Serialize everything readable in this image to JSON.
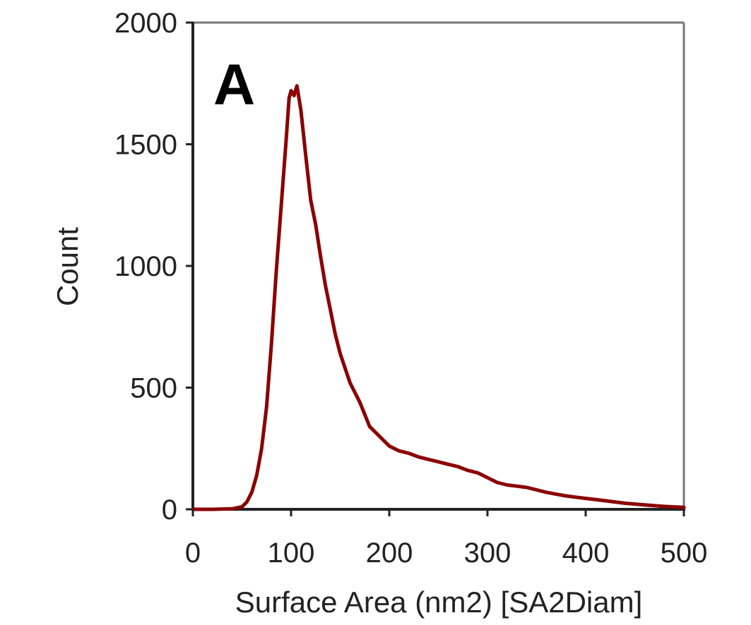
{
  "chart_data": {
    "type": "line",
    "panel_label": "A",
    "xlabel": "Surface Area (nm2) [SA2Diam]",
    "ylabel": "Count",
    "xlim": [
      0,
      500
    ],
    "ylim": [
      0,
      2000
    ],
    "x_ticks": [
      "0",
      "100",
      "200",
      "300",
      "400",
      "500"
    ],
    "y_ticks": [
      "0",
      "500",
      "1000",
      "1500",
      "2000"
    ],
    "grid": false,
    "legend": "none",
    "series_color": "#8b0000",
    "series": [
      {
        "x": [
          0,
          20,
          40,
          50,
          55,
          60,
          65,
          70,
          75,
          80,
          85,
          90,
          95,
          98,
          100,
          103,
          106,
          110,
          115,
          120,
          125,
          130,
          135,
          140,
          145,
          150,
          160,
          170,
          180,
          190,
          200,
          210,
          220,
          230,
          240,
          250,
          260,
          270,
          280,
          290,
          300,
          310,
          320,
          330,
          340,
          350,
          360,
          370,
          380,
          390,
          400,
          420,
          440,
          460,
          480,
          500
        ],
        "y": [
          0,
          0,
          2,
          10,
          30,
          70,
          140,
          250,
          420,
          680,
          980,
          1250,
          1520,
          1690,
          1720,
          1700,
          1740,
          1640,
          1450,
          1270,
          1170,
          1040,
          920,
          820,
          720,
          640,
          520,
          440,
          340,
          300,
          260,
          240,
          230,
          215,
          205,
          195,
          185,
          175,
          160,
          150,
          130,
          110,
          100,
          95,
          90,
          80,
          70,
          62,
          55,
          50,
          45,
          35,
          25,
          18,
          12,
          8
        ]
      }
    ]
  }
}
